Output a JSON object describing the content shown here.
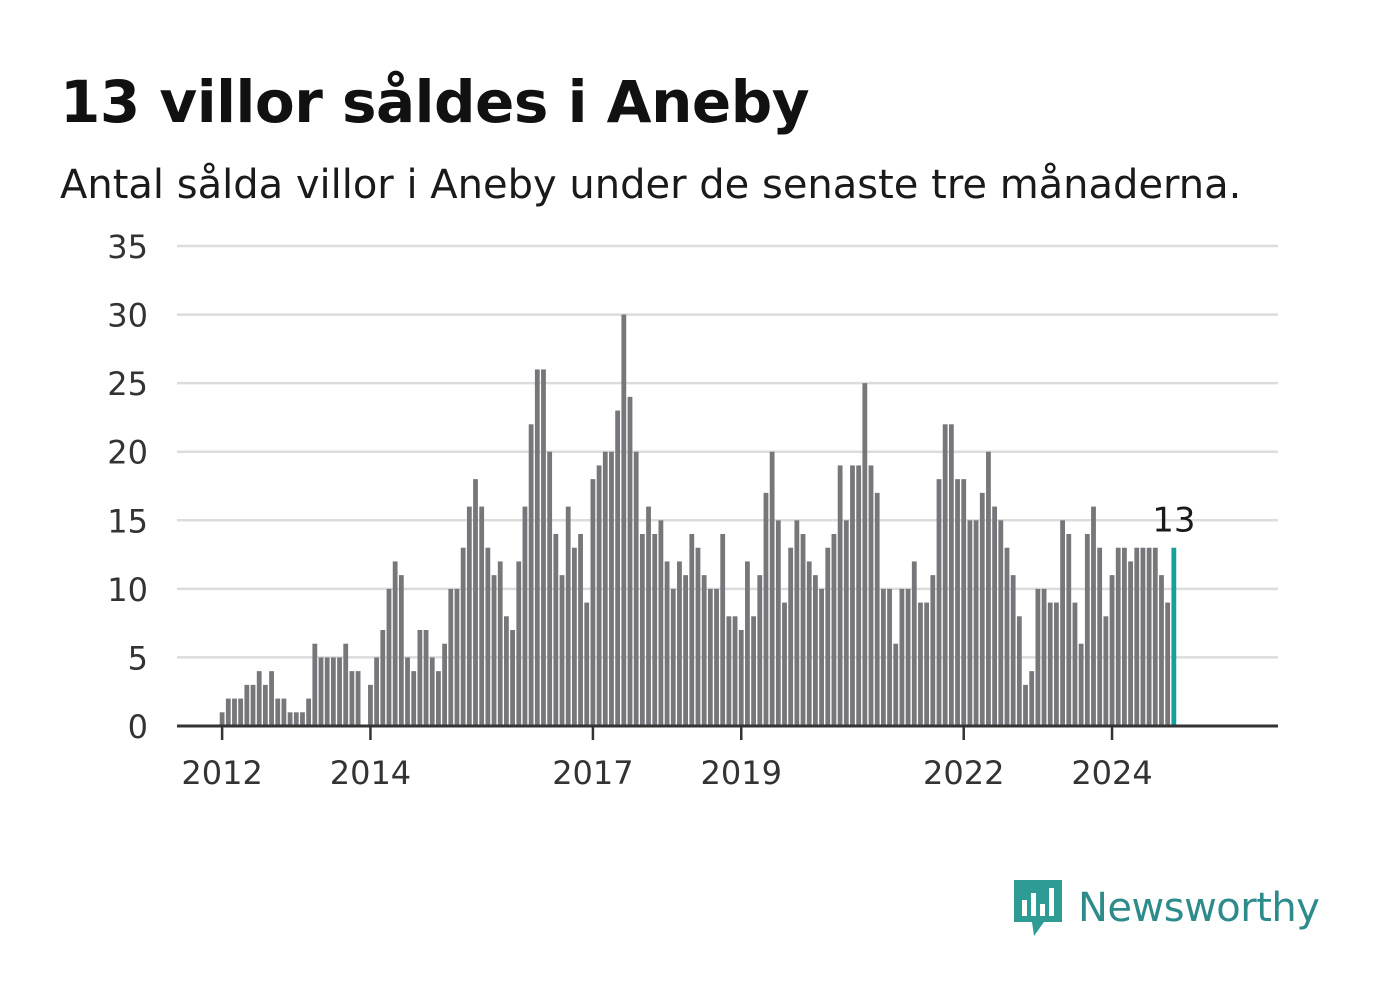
{
  "header": {
    "title": "13 villor såldes i Aneby",
    "subtitle": "Antal sålda villor i Aneby under de senaste tre månaderna."
  },
  "brand": {
    "name": "Newsworthy",
    "icon": "newsworthy-logo-icon",
    "color": "#2e9c95"
  },
  "colors": {
    "bar": "#77767b",
    "highlight": "#13a19a",
    "grid": "#dcdcdc",
    "axis": "#333333"
  },
  "chart_data": {
    "type": "bar",
    "title": "13 villor såldes i Aneby",
    "subtitle": "Antal sålda villor i Aneby under de senaste tre månaderna.",
    "xlabel": "",
    "ylabel": "",
    "ylim": [
      0,
      35
    ],
    "yticks": [
      0,
      5,
      10,
      15,
      20,
      25,
      30,
      35
    ],
    "xticks": [
      "2012",
      "2014",
      "2017",
      "2019",
      "2022",
      "2024"
    ],
    "grid": true,
    "legend": "none",
    "start": "2011-09",
    "frequency": "monthly",
    "values": [
      0,
      0,
      0,
      0,
      1,
      2,
      2,
      2,
      3,
      3,
      4,
      3,
      4,
      2,
      2,
      1,
      1,
      1,
      2,
      6,
      5,
      5,
      5,
      5,
      6,
      4,
      4,
      0,
      3,
      5,
      7,
      10,
      12,
      11,
      5,
      4,
      7,
      7,
      5,
      4,
      6,
      10,
      10,
      13,
      16,
      18,
      16,
      13,
      11,
      12,
      8,
      7,
      12,
      16,
      22,
      26,
      26,
      20,
      14,
      11,
      16,
      13,
      14,
      9,
      18,
      19,
      20,
      20,
      23,
      30,
      24,
      20,
      14,
      16,
      14,
      15,
      12,
      10,
      12,
      11,
      14,
      13,
      11,
      10,
      10,
      14,
      8,
      8,
      7,
      12,
      8,
      11,
      17,
      20,
      15,
      9,
      13,
      15,
      14,
      12,
      11,
      10,
      13,
      14,
      19,
      15,
      19,
      19,
      25,
      19,
      17,
      10,
      10,
      6,
      10,
      10,
      12,
      9,
      9,
      11,
      18,
      22,
      22,
      18,
      18,
      15,
      15,
      17,
      20,
      16,
      15,
      13,
      11,
      8,
      3,
      4,
      10,
      10,
      9,
      9,
      15,
      14,
      9,
      6,
      14,
      16,
      13,
      8,
      11,
      13,
      13,
      12,
      13,
      13,
      13,
      13,
      11,
      9,
      13
    ],
    "highlight": {
      "label": "13",
      "value": 13
    }
  }
}
